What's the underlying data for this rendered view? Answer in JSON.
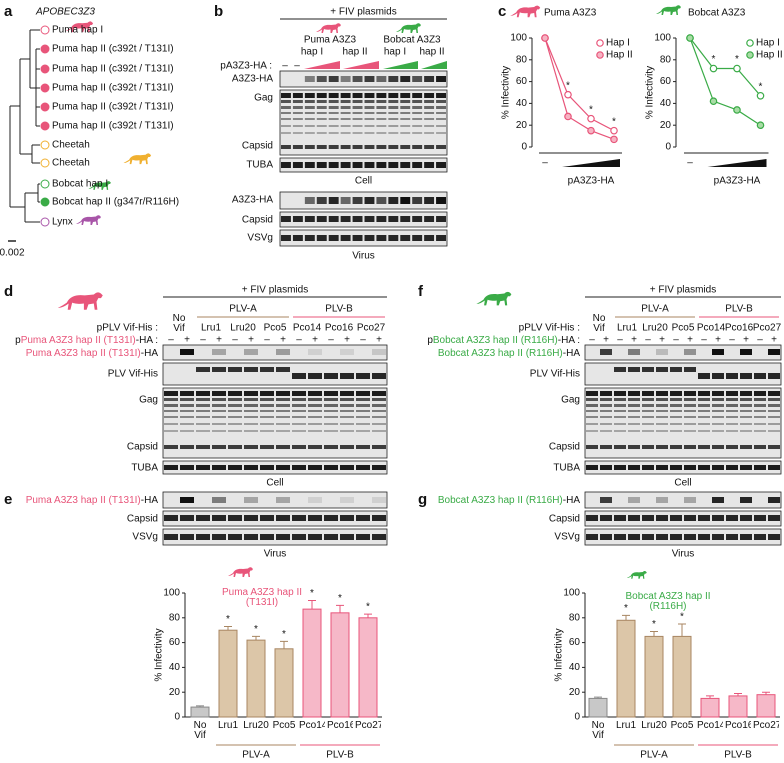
{
  "panel_labels": [
    "a",
    "b",
    "c",
    "d",
    "e",
    "f",
    "g"
  ],
  "panel_a": {
    "title": "APOBEC3Z3",
    "scale": "0.002",
    "leaves": [
      {
        "label": "Puma hap I",
        "color": "#e8557a",
        "filled": false
      },
      {
        "label": "Puma hap II (c392t / T131I)",
        "color": "#e8557a",
        "filled": true
      },
      {
        "label": "Puma hap II (c392t / T131I)",
        "color": "#e8557a",
        "filled": true
      },
      {
        "label": "Puma hap II (c392t / T131I)",
        "color": "#e8557a",
        "filled": true
      },
      {
        "label": "Puma hap II (c392t / T131I)",
        "color": "#e8557a",
        "filled": true
      },
      {
        "label": "Puma hap II (c392t / T131I)",
        "color": "#e8557a",
        "filled": true
      },
      {
        "label": "Cheetah",
        "color": "#f0b030",
        "filled": false
      },
      {
        "label": "Cheetah",
        "color": "#f0b030",
        "filled": false
      },
      {
        "label": "Bobcat hap I",
        "color": "#3aab47",
        "filled": false
      },
      {
        "label": "Bobcat hap II (g347r/R116H)",
        "color": "#3aab47",
        "filled": true
      },
      {
        "label": "Lynx",
        "color": "#a855a8",
        "filled": false
      }
    ]
  },
  "panel_b": {
    "header": "+ FIV plasmids",
    "puma": "Puma A3Z3",
    "bobcat": "Bobcat A3Z3",
    "haps": [
      "hap I",
      "hap II",
      "hap I",
      "hap II"
    ],
    "row_label": "pA3Z3-HA :",
    "signs": [
      "–",
      "–"
    ],
    "cell_rows": [
      "A3Z3-HA",
      "Gag",
      "Capsid",
      "TUBA"
    ],
    "cell": "Cell",
    "virus_rows": [
      "A3Z3-HA",
      "Capsid",
      "VSVg"
    ],
    "virus": "Virus"
  },
  "panel_d": {
    "header": "+ FIV plasmids",
    "no_vif": "No Vif",
    "groups": [
      {
        "name": "PLV-A",
        "color": "#a88662"
      },
      {
        "name": "PLV-B",
        "color": "#e8557a"
      }
    ],
    "lanes": [
      "Lru1",
      "Lru20",
      "Pco5",
      "Pco14",
      "Pco16",
      "Pco27"
    ],
    "vif_label": "pPLV Vif-His :",
    "ha_label": {
      "prefix": "p",
      "name": "Puma A3Z3 hap II (T131I)",
      "suffix": "-HA :"
    },
    "signs": [
      "–",
      "+",
      "–",
      "+",
      "–",
      "+",
      "–",
      "+",
      "–",
      "+",
      "–",
      "+",
      "–",
      "+"
    ],
    "color": "#e8557a",
    "cell_ha": {
      "name": "Puma A3Z3 hap II (T131I)",
      "suffix": "-HA"
    },
    "cell_rows": [
      "PLV Vif-His",
      "Gag",
      "Capsid",
      "TUBA"
    ],
    "cell": "Cell",
    "virus_ha": {
      "name": "Puma A3Z3 hap II (T131I)",
      "suffix": "-HA"
    },
    "virus_rows": [
      "Capsid",
      "VSVg"
    ],
    "virus": "Virus"
  },
  "panel_f": {
    "header": "+ FIV plasmids",
    "no_vif": "No Vif",
    "groups": [
      {
        "name": "PLV-A",
        "color": "#a88662"
      },
      {
        "name": "PLV-B",
        "color": "#e8557a"
      }
    ],
    "lanes": [
      "Lru1",
      "Lru20",
      "Pco5",
      "Pco14",
      "Pco16",
      "Pco27"
    ],
    "vif_label": "pPLV Vif-His :",
    "ha_label": {
      "prefix": "p",
      "name": "Bobcat A3Z3 hap II (R116H)",
      "suffix": "-HA :"
    },
    "signs": [
      "–",
      "+",
      "–",
      "+",
      "–",
      "+",
      "–",
      "+",
      "–",
      "+",
      "–",
      "+",
      "–",
      "+"
    ],
    "color": "#3aab47",
    "cell_ha": {
      "name": "Bobcat A3Z3 hap II (R116H)",
      "suffix": "-HA"
    },
    "cell_rows": [
      "PLV Vif-His",
      "Gag",
      "Capsid",
      "TUBA"
    ],
    "cell": "Cell",
    "virus_ha": {
      "name": "Bobcat A3Z3 hap II (R116H)",
      "suffix": "-HA"
    },
    "virus_rows": [
      "Capsid",
      "VSVg"
    ],
    "virus": "Virus"
  },
  "chart_data": [
    {
      "type": "line",
      "title": "Puma A3Z3",
      "title_color": "#e8557a",
      "ylabel": "% Infectivity",
      "xlabel": "pA3Z3-HA",
      "categories": [
        "–",
        null,
        null,
        null
      ],
      "series": [
        {
          "name": "Hap I",
          "color": "#e8557a",
          "fill": "#ffffff",
          "values": [
            100,
            48,
            26,
            15
          ]
        },
        {
          "name": "Hap II",
          "color": "#e8557a",
          "fill": "#f6b3c3",
          "values": [
            100,
            28,
            15,
            7
          ]
        }
      ],
      "markers": [
        null,
        "*",
        "*",
        "*"
      ],
      "ylim": [
        0,
        100
      ],
      "yticks": [
        0,
        20,
        40,
        60,
        80,
        100
      ],
      "legend": "upper right"
    },
    {
      "type": "line",
      "title": "Bobcat A3Z3",
      "title_color": "#3aab47",
      "ylabel": "% Infectivity",
      "xlabel": "pA3Z3-HA",
      "categories": [
        "–",
        null,
        null,
        null
      ],
      "series": [
        {
          "name": "Hap I",
          "color": "#3aab47",
          "fill": "#ffffff",
          "values": [
            100,
            72,
            72,
            47
          ]
        },
        {
          "name": "Hap II",
          "color": "#3aab47",
          "fill": "#a8dca5",
          "values": [
            100,
            42,
            34,
            20
          ]
        }
      ],
      "markers": [
        null,
        "*",
        "*",
        "*"
      ],
      "ylim": [
        0,
        100
      ],
      "yticks": [
        0,
        20,
        40,
        60,
        80,
        100
      ],
      "legend": "upper right"
    },
    {
      "type": "bar",
      "title": "Puma A3Z3 hap II (T131I)",
      "title_color": "#e8557a",
      "ylabel": "% Infectivity",
      "categories": [
        "No Vif",
        "Lru1",
        "Lru20",
        "Pco5",
        "Pco14",
        "Pco16",
        "Pco27"
      ],
      "values": [
        8,
        70,
        62,
        55,
        87,
        84,
        80
      ],
      "errors": [
        1,
        3,
        3,
        6,
        7,
        6,
        3
      ],
      "colors": [
        "#c8c8c8",
        "#dcc6a8",
        "#dcc6a8",
        "#dcc6a8",
        "#f6b8c8",
        "#f6b8c8",
        "#f6b8c8"
      ],
      "edgecolors": [
        "#888888",
        "#a88662",
        "#a88662",
        "#a88662",
        "#e8557a",
        "#e8557a",
        "#e8557a"
      ],
      "markers": [
        null,
        "*",
        "*",
        "*",
        "*",
        "*",
        "*"
      ],
      "groups": [
        {
          "name": "PLV-A",
          "color": "#a88662",
          "first": 1,
          "last": 3
        },
        {
          "name": "PLV-B",
          "color": "#e8557a",
          "first": 4,
          "last": 6
        }
      ],
      "ylim": [
        0,
        100
      ],
      "yticks": [
        0,
        20,
        40,
        60,
        80,
        100
      ]
    },
    {
      "type": "bar",
      "title": "Bobcat A3Z3 hap II (R116H)",
      "title_color": "#3aab47",
      "ylabel": "% Infectivity",
      "categories": [
        "No Vif",
        "Lru1",
        "Lru20",
        "Pco5",
        "Pco14",
        "Pco16",
        "Pco27"
      ],
      "values": [
        15,
        78,
        65,
        65,
        15,
        17,
        18
      ],
      "errors": [
        1,
        4,
        4,
        10,
        2,
        2,
        2
      ],
      "colors": [
        "#c8c8c8",
        "#dcc6a8",
        "#dcc6a8",
        "#dcc6a8",
        "#f6b8c8",
        "#f6b8c8",
        "#f6b8c8"
      ],
      "edgecolors": [
        "#888888",
        "#a88662",
        "#a88662",
        "#a88662",
        "#e8557a",
        "#e8557a",
        "#e8557a"
      ],
      "markers": [
        null,
        "*",
        "*",
        "*",
        null,
        null,
        null
      ],
      "groups": [
        {
          "name": "PLV-A",
          "color": "#a88662",
          "first": 1,
          "last": 3
        },
        {
          "name": "PLV-B",
          "color": "#e8557a",
          "first": 4,
          "last": 6
        }
      ],
      "ylim": [
        0,
        100
      ],
      "yticks": [
        0,
        20,
        40,
        60,
        80,
        100
      ]
    }
  ]
}
